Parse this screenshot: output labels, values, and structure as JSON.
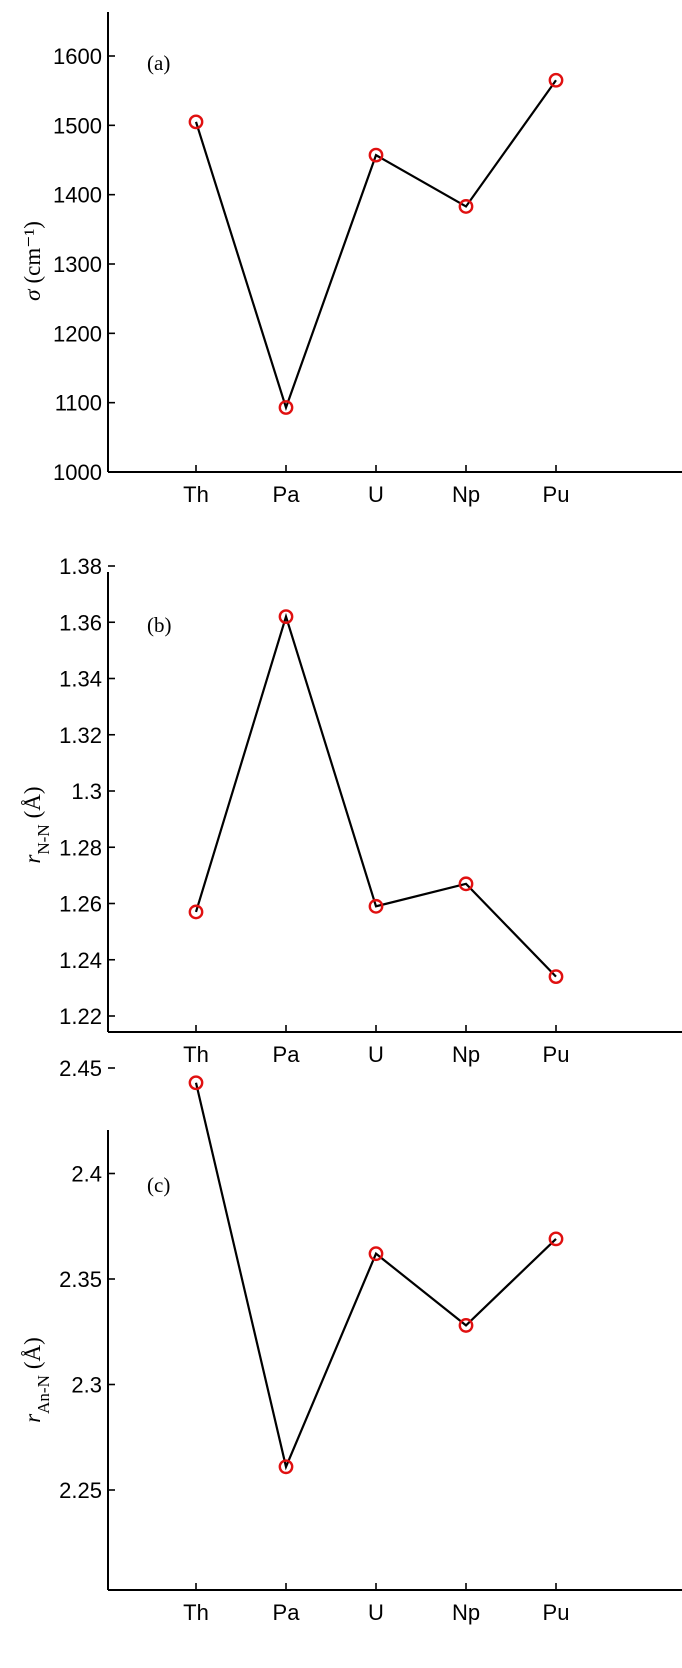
{
  "chart_data": [
    {
      "type": "line",
      "panel_label": "(a)",
      "ylabel": "σ (cm⁻¹)",
      "ylabel_parts": {
        "symbol": "σ",
        "unit": "(cm⁻¹)"
      },
      "categories": [
        "Th",
        "Pa",
        "U",
        "Np",
        "Pu"
      ],
      "values": [
        1505,
        1093,
        1457,
        1383,
        1565
      ],
      "ylim": [
        1000,
        1650
      ],
      "yticks": [
        1000,
        1100,
        1200,
        1300,
        1400,
        1500,
        1600
      ],
      "ytick_labels": [
        "1000",
        "1100",
        "1200",
        "1300",
        "1400",
        "1500",
        "1600"
      ],
      "marker_color": "#e01010",
      "line_color": "#000000"
    },
    {
      "type": "line",
      "panel_label": "(b)",
      "ylabel": "r N-N (Å)",
      "ylabel_parts": {
        "symbol": "r",
        "sub": "N-N",
        "unit": "(Å)"
      },
      "categories": [
        "Th",
        "Pa",
        "U",
        "Np",
        "Pu"
      ],
      "values": [
        1.257,
        1.362,
        1.259,
        1.267,
        1.234
      ],
      "ylim": [
        1.21,
        1.388
      ],
      "yticks": [
        1.22,
        1.24,
        1.26,
        1.28,
        1.3,
        1.32,
        1.34,
        1.36,
        1.38
      ],
      "ytick_labels": [
        "1.22",
        "1.24",
        "1.26",
        "1.28",
        "1.3",
        "1.32",
        "1.34",
        "1.36",
        "1.38"
      ],
      "marker_color": "#e01010",
      "line_color": "#000000"
    },
    {
      "type": "line",
      "panel_label": "(c)",
      "ylabel": "r An-N (Å)",
      "ylabel_parts": {
        "symbol": "r",
        "sub": "An-N",
        "unit": "(Å)"
      },
      "categories": [
        "Th",
        "Pa",
        "U",
        "Np",
        "Pu"
      ],
      "values": [
        2.443,
        2.261,
        2.362,
        2.328,
        2.369
      ],
      "ylim": [
        2.22,
        2.48
      ],
      "yticks": [
        2.25,
        2.3,
        2.35,
        2.4,
        2.45
      ],
      "ytick_labels": [
        "2.25",
        "2.3",
        "2.35",
        "2.4",
        "2.45"
      ],
      "marker_color": "#e01010",
      "line_color": "#000000"
    }
  ]
}
